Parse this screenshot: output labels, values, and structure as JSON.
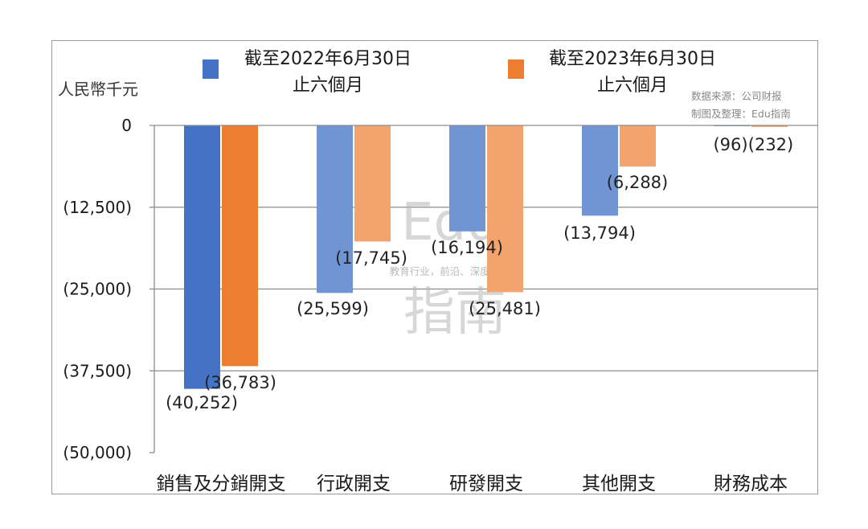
{
  "chart_data": {
    "type": "bar",
    "unit_label": "人民幣千元",
    "categories": [
      "銷售及分銷開支",
      "行政開支",
      "研發開支",
      "其他開支",
      "財務成本"
    ],
    "series": [
      {
        "name_line1": "截至2022年6月30日",
        "name_line2": "止六個月",
        "color": "#4472C4",
        "light_color": "#7094D4",
        "values": [
          -40252,
          -25599,
          -16194,
          -13794,
          -96
        ],
        "labels": [
          "(40,252)",
          "(25,599)",
          "(16,194)",
          "(13,794)",
          "(96)"
        ]
      },
      {
        "name_line1": "截至2023年6月30日",
        "name_line2": "止六個月",
        "color": "#ED7D31",
        "light_color": "#F3A36E",
        "values": [
          -36783,
          -17745,
          -25481,
          -6288,
          -232
        ],
        "labels": [
          "(36,783)",
          "(17,745)",
          "(25,481)",
          "(6,288)",
          "(232)"
        ]
      }
    ],
    "ylim": [
      -50000,
      0
    ],
    "y_ticks": [
      0,
      -12500,
      -25000,
      -37500,
      -50000
    ],
    "y_tick_labels": [
      "0",
      "(12,500)",
      "(25,000)",
      "(37,500)",
      "(50,000)"
    ],
    "grid": true,
    "legend_position": "top"
  },
  "source_note": {
    "line1": "数据来源：公司财报",
    "line2": "制图及整理：Edu指南"
  },
  "watermark": {
    "big1": "Edu",
    "small": "教育行业，前沿、深度、独家",
    "big2": "指南"
  }
}
